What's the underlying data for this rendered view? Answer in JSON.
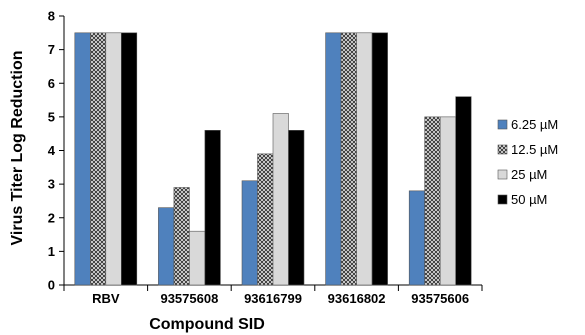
{
  "chart_data": {
    "type": "bar",
    "xlabel": "Compound SID",
    "ylabel": "Virus Titer Log Reduction",
    "ylim": [
      0,
      8
    ],
    "yticks": [
      0,
      1,
      2,
      3,
      4,
      5,
      6,
      7,
      8
    ],
    "grid": false,
    "legend_position": "right",
    "categories": [
      "RBV",
      "93575608",
      "93616799",
      "93616802",
      "93575606"
    ],
    "series": [
      {
        "name": "6.25  µM",
        "color": "#4F81BD",
        "pattern": "solid",
        "values": [
          7.5,
          2.3,
          3.1,
          7.5,
          2.8
        ]
      },
      {
        "name": "12.5 µM",
        "color": "#3A3A3A",
        "pattern": "crosshatch",
        "values": [
          7.5,
          2.9,
          3.9,
          7.5,
          5.0
        ]
      },
      {
        "name": "25  µM",
        "color": "#D9D9D9",
        "pattern": "solid",
        "values": [
          7.5,
          1.6,
          5.1,
          7.5,
          5.0
        ]
      },
      {
        "name": "50  µM",
        "color": "#000000",
        "pattern": "solid",
        "values": [
          7.5,
          4.6,
          4.6,
          7.5,
          5.6
        ]
      }
    ]
  }
}
